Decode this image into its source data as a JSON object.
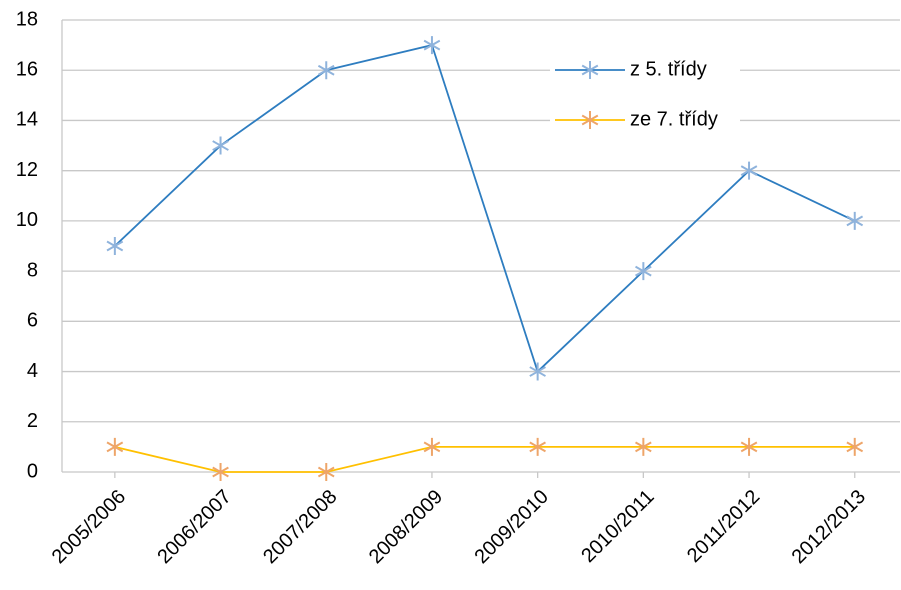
{
  "chart_data": {
    "type": "line",
    "categories": [
      "2005/2006",
      "2006/2007",
      "2007/2008",
      "2008/2009",
      "2009/2010",
      "2010/2011",
      "2011/2012",
      "2012/2013"
    ],
    "series": [
      {
        "name": "z 5. třídy",
        "color": "#2e7dc0",
        "marker_color": "#8fb3dc",
        "values": [
          9,
          13,
          16,
          17,
          4,
          8,
          12,
          10
        ]
      },
      {
        "name": "ze 7. třídy",
        "color": "#ffc000",
        "marker_color": "#eea569",
        "values": [
          1,
          0,
          0,
          1,
          1,
          1,
          1,
          1
        ]
      }
    ],
    "ylim": [
      0,
      18
    ],
    "yticks": [
      0,
      2,
      4,
      6,
      8,
      10,
      12,
      14,
      16,
      18
    ],
    "grid": true,
    "legend": "upper right"
  }
}
